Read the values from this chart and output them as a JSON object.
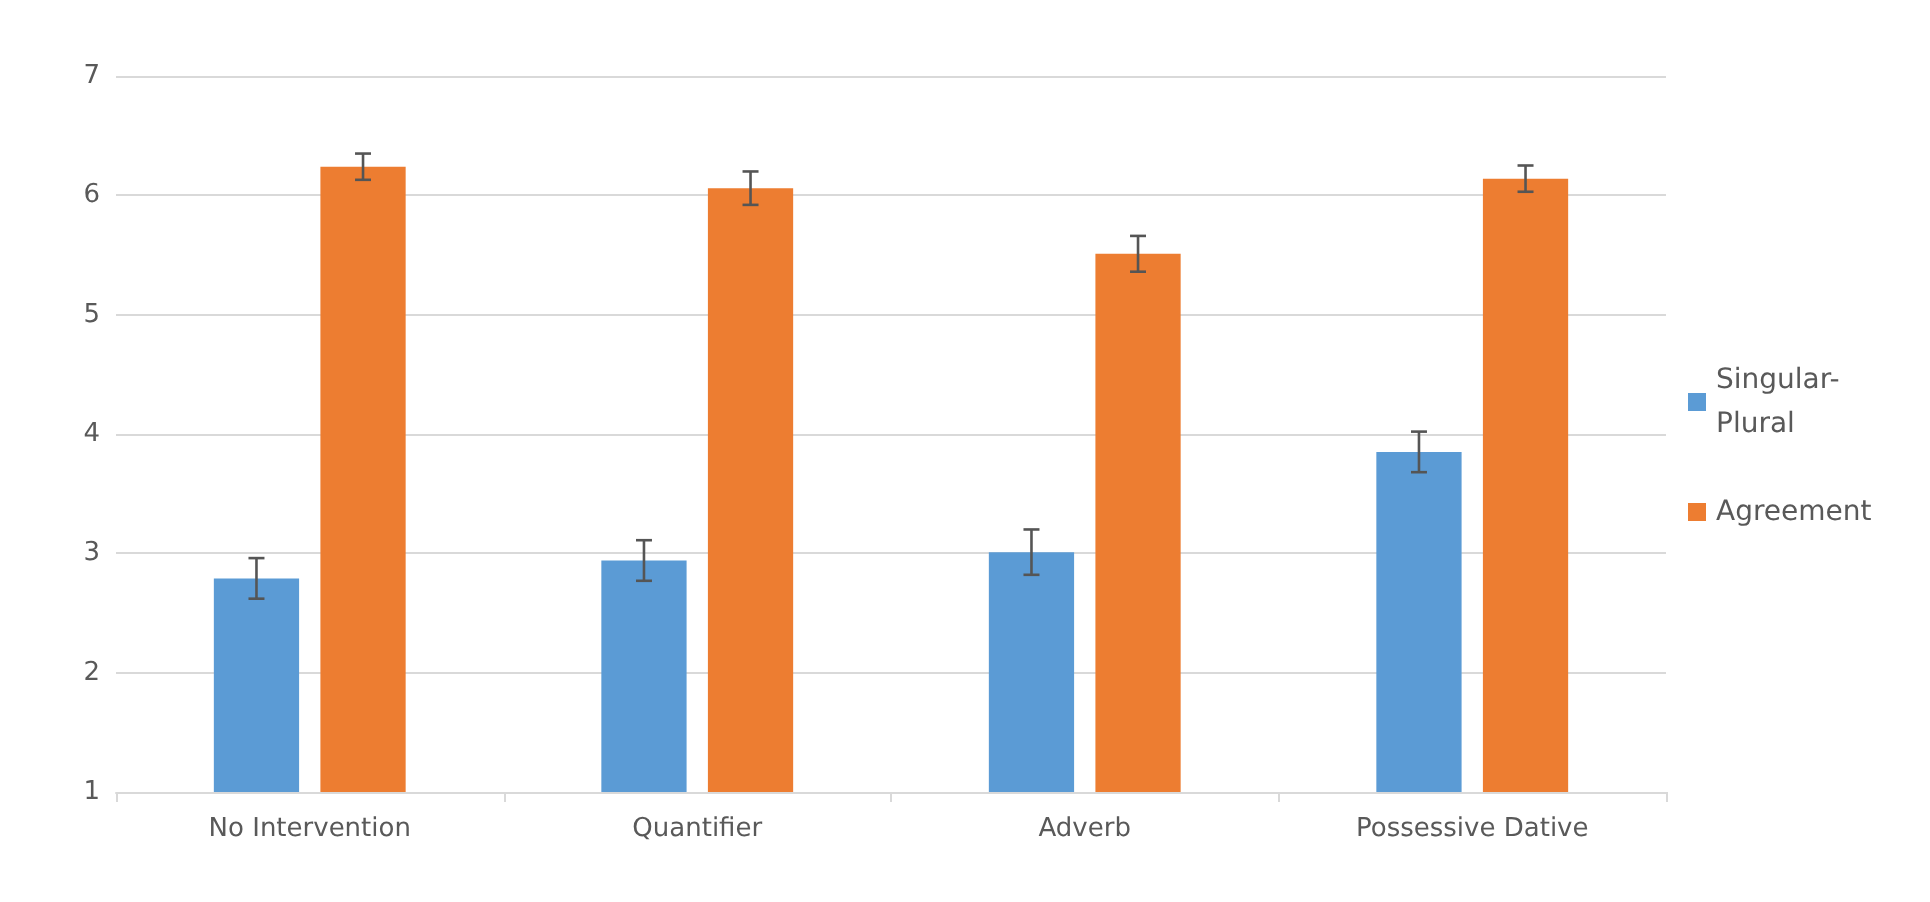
{
  "chart_data": {
    "type": "bar",
    "categories": [
      "No Intervention",
      "Quantifier",
      "Adverb",
      "Possessive Dative"
    ],
    "series": [
      {
        "name": "Singular-Plural",
        "color": "#5b9bd5",
        "values": [
          2.79,
          2.94,
          3.01,
          3.85
        ],
        "errors": [
          0.17,
          0.17,
          0.19,
          0.17
        ]
      },
      {
        "name": "Agreement",
        "color": "#ed7d31",
        "values": [
          6.24,
          6.06,
          5.51,
          6.14
        ],
        "errors": [
          0.11,
          0.14,
          0.15,
          0.11
        ]
      }
    ],
    "ylim": [
      1,
      7
    ],
    "yticks": [
      1,
      2,
      3,
      4,
      5,
      6,
      7
    ],
    "grid": "y",
    "legend": "right"
  }
}
